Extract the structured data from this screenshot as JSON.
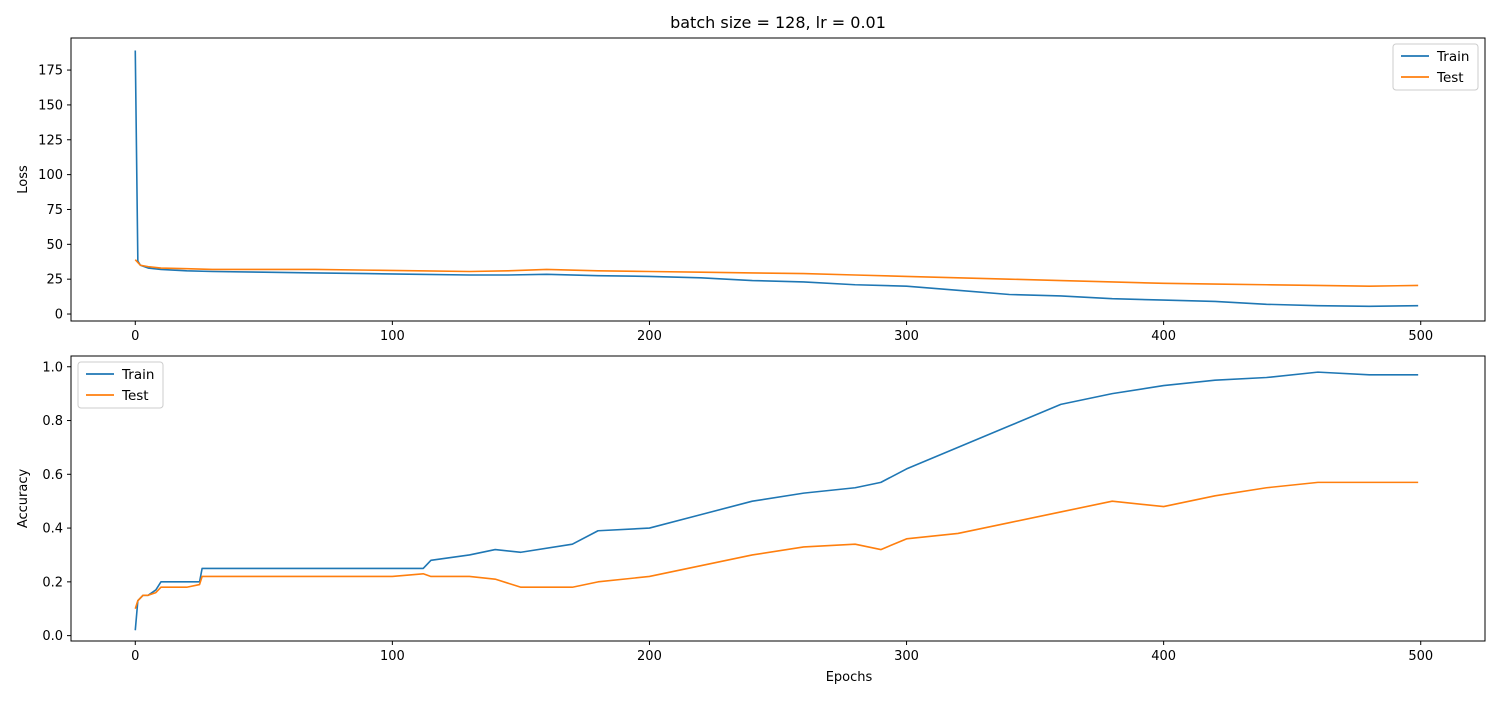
{
  "figure": {
    "title": "batch size = 128, lr = 0.01"
  },
  "colors": {
    "train": "#1f77b4",
    "test": "#ff7f0e"
  },
  "chart_data": [
    {
      "type": "line",
      "ylabel": "Loss",
      "xlabel": "",
      "xlim": [
        -25,
        525
      ],
      "ylim": [
        -5,
        198
      ],
      "xticks": [
        0,
        100,
        200,
        300,
        400,
        500
      ],
      "yticks": [
        0,
        25,
        50,
        75,
        100,
        125,
        150,
        175
      ],
      "legend": {
        "placement": "upper right",
        "entries": [
          "Train",
          "Test"
        ]
      },
      "series": [
        {
          "name": "Train",
          "color": "#1f77b4",
          "x": [
            0,
            1,
            2,
            5,
            10,
            20,
            30,
            50,
            70,
            90,
            110,
            130,
            145,
            160,
            180,
            200,
            220,
            240,
            260,
            280,
            300,
            320,
            340,
            360,
            380,
            400,
            420,
            440,
            460,
            480,
            499
          ],
          "y": [
            189,
            38,
            35,
            33,
            32,
            31,
            30.5,
            30,
            29.5,
            29,
            28.5,
            28,
            28,
            28.5,
            27.5,
            27,
            26,
            24,
            23,
            21,
            20,
            17,
            14,
            13,
            11,
            10,
            9,
            7,
            6,
            5.5,
            6
          ]
        },
        {
          "name": "Test",
          "color": "#ff7f0e",
          "x": [
            0,
            1,
            2,
            5,
            10,
            20,
            30,
            50,
            70,
            90,
            110,
            130,
            145,
            160,
            180,
            200,
            220,
            240,
            260,
            280,
            300,
            320,
            340,
            360,
            380,
            400,
            420,
            440,
            460,
            480,
            499
          ],
          "y": [
            39,
            37,
            35,
            34,
            33,
            32.5,
            32,
            32,
            32,
            31.5,
            31,
            30.5,
            31,
            32,
            31,
            30.5,
            30,
            29.5,
            29,
            28,
            27,
            26,
            25,
            24,
            23,
            22,
            21.5,
            21,
            20.5,
            20,
            20.5
          ]
        }
      ]
    },
    {
      "type": "line",
      "ylabel": "Accuracy",
      "xlabel": "Epochs",
      "xlim": [
        -25,
        525
      ],
      "ylim": [
        -0.02,
        1.04
      ],
      "xticks": [
        0,
        100,
        200,
        300,
        400,
        500
      ],
      "yticks": [
        0.0,
        0.2,
        0.4,
        0.6,
        0.8,
        1.0
      ],
      "legend": {
        "placement": "upper left",
        "entries": [
          "Train",
          "Test"
        ]
      },
      "series": [
        {
          "name": "Train",
          "color": "#1f77b4",
          "x": [
            0,
            1,
            3,
            5,
            8,
            10,
            20,
            25,
            26,
            50,
            100,
            112,
            115,
            130,
            140,
            150,
            170,
            180,
            200,
            220,
            240,
            260,
            280,
            290,
            300,
            320,
            340,
            360,
            380,
            400,
            420,
            440,
            460,
            480,
            499
          ],
          "y": [
            0.02,
            0.13,
            0.15,
            0.15,
            0.17,
            0.2,
            0.2,
            0.2,
            0.25,
            0.25,
            0.25,
            0.25,
            0.28,
            0.3,
            0.32,
            0.31,
            0.34,
            0.39,
            0.4,
            0.45,
            0.5,
            0.53,
            0.55,
            0.57,
            0.62,
            0.7,
            0.78,
            0.86,
            0.9,
            0.93,
            0.95,
            0.96,
            0.98,
            0.97,
            0.97
          ]
        },
        {
          "name": "Test",
          "color": "#ff7f0e",
          "x": [
            0,
            1,
            3,
            5,
            8,
            10,
            20,
            25,
            26,
            50,
            100,
            112,
            115,
            130,
            140,
            150,
            170,
            180,
            200,
            220,
            240,
            260,
            280,
            290,
            300,
            320,
            340,
            360,
            380,
            400,
            420,
            440,
            460,
            480,
            499
          ],
          "y": [
            0.1,
            0.13,
            0.15,
            0.15,
            0.16,
            0.18,
            0.18,
            0.19,
            0.22,
            0.22,
            0.22,
            0.23,
            0.22,
            0.22,
            0.21,
            0.18,
            0.18,
            0.2,
            0.22,
            0.26,
            0.3,
            0.33,
            0.34,
            0.32,
            0.36,
            0.38,
            0.42,
            0.46,
            0.5,
            0.48,
            0.52,
            0.55,
            0.57,
            0.57,
            0.57
          ]
        }
      ]
    }
  ]
}
